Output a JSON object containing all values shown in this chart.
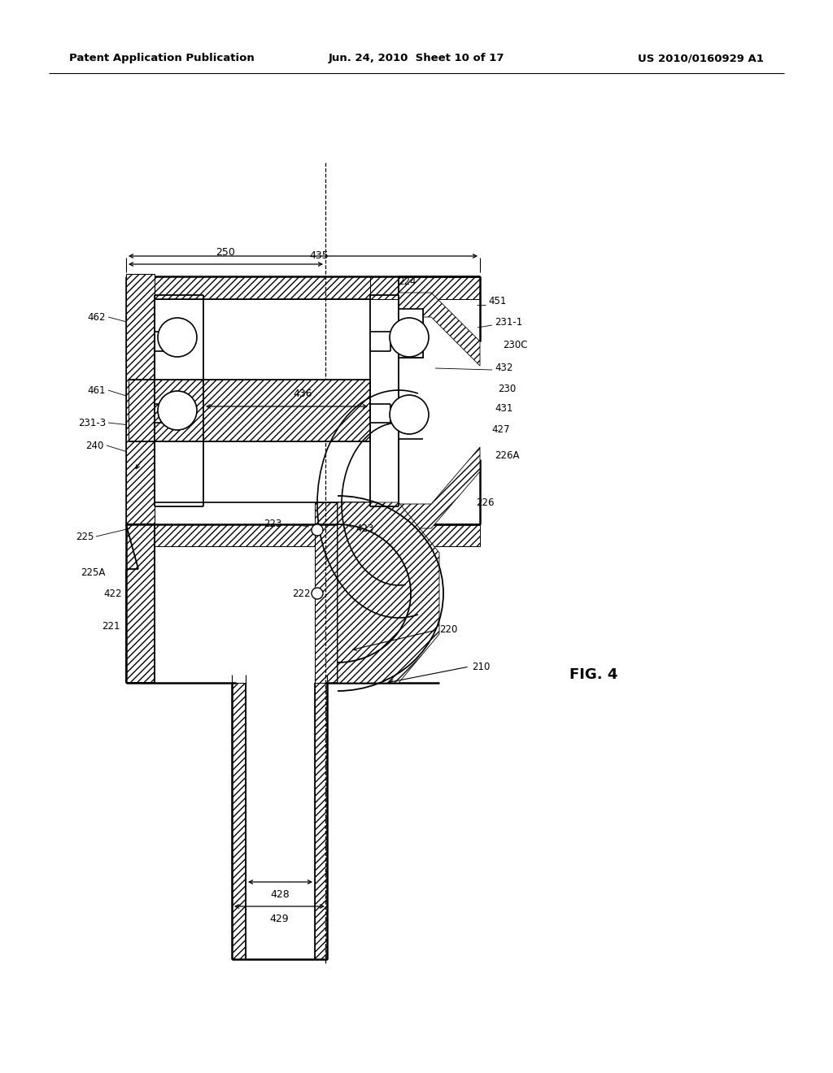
{
  "header_left": "Patent Application Publication",
  "header_center": "Jun. 24, 2010  Sheet 10 of 17",
  "header_right": "US 2010/0160929 A1",
  "fig_label": "FIG. 4",
  "bg": "#ffffff"
}
